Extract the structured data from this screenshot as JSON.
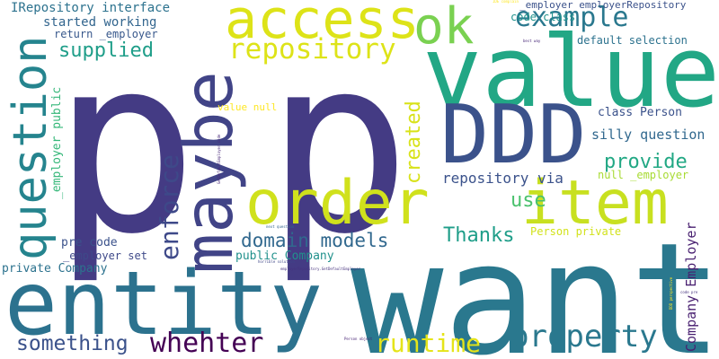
{
  "word_cloud": {
    "words": [
      {
        "text": "p",
        "color": "#443b84"
      },
      {
        "text": "p",
        "color": "#443b84"
      },
      {
        "text": "want",
        "color": "#2a788e"
      },
      {
        "text": "value",
        "color": "#22a785"
      },
      {
        "text": "entity",
        "color": "#2c728e"
      },
      {
        "text": "maybe",
        "color": "#414487"
      },
      {
        "text": "DDD",
        "color": "#3b528b"
      },
      {
        "text": "order",
        "color": "#d0e11c"
      },
      {
        "text": "item",
        "color": "#c8e020"
      },
      {
        "text": "access",
        "color": "#dde318"
      },
      {
        "text": "question",
        "color": "#25848e"
      },
      {
        "text": "ok",
        "color": "#7ad151"
      },
      {
        "text": "example",
        "color": "#2a788e"
      },
      {
        "text": "repository",
        "color": "#dde318"
      },
      {
        "text": "property",
        "color": "#2a788e"
      },
      {
        "text": "whehter",
        "color": "#440154"
      },
      {
        "text": "runtime",
        "color": "#e5e419"
      },
      {
        "text": "something",
        "color": "#3b528b"
      },
      {
        "text": "enforce",
        "color": "#3e4989"
      },
      {
        "text": "created",
        "color": "#d8e219"
      },
      {
        "text": "domain models",
        "color": "#31688e"
      },
      {
        "text": "Thanks",
        "color": "#1f9e89"
      },
      {
        "text": "supplied",
        "color": "#1f9e89"
      },
      {
        "text": "provide",
        "color": "#22a884"
      },
      {
        "text": "use",
        "color": "#4ac16d"
      },
      {
        "text": "repository via",
        "color": "#3b528b"
      },
      {
        "text": "Company Employer",
        "color": "#481f70"
      },
      {
        "text": "IRepository interface",
        "color": "#2c728e"
      },
      {
        "text": "started working",
        "color": "#32658e"
      },
      {
        "text": "return _employer",
        "color": "#38588c"
      },
      {
        "text": "_employer public",
        "color": "#35b779"
      },
      {
        "text": "_employer employerRepository",
        "color": "#3b528b"
      },
      {
        "text": "code class",
        "color": "#20928c"
      },
      {
        "text": "default selection",
        "color": "#2c728e"
      },
      {
        "text": "class Person",
        "color": "#3b528b"
      },
      {
        "text": "silly question",
        "color": "#31688e"
      },
      {
        "text": "null _employer",
        "color": "#a8db34"
      },
      {
        "text": "value null",
        "color": "#fde725"
      },
      {
        "text": "pre code",
        "color": "#3b528b"
      },
      {
        "text": "_employer set",
        "color": "#3e4989"
      },
      {
        "text": "private Company",
        "color": "#2c728e"
      },
      {
        "text": "public Company",
        "color": "#21918c"
      },
      {
        "text": "Person private",
        "color": "#d2e21b"
      },
      {
        "text": "GetDefaultEmployer code",
        "color": "#482878"
      },
      {
        "text": "best way",
        "color": "#482878"
      },
      {
        "text": "next question",
        "color": "#32648e"
      },
      {
        "text": "horrible solution",
        "color": "#3f4788"
      },
      {
        "text": "employerRepository.GetDefaultEmployer",
        "color": "#46327e"
      },
      {
        "text": "code pre",
        "color": "#46327e"
      },
      {
        "text": "Person object",
        "color": "#482475"
      },
      {
        "text": "IDE complain",
        "color": "#fde725"
      },
      {
        "text": "DDD perspective",
        "color": "#fde725"
      }
    ]
  }
}
